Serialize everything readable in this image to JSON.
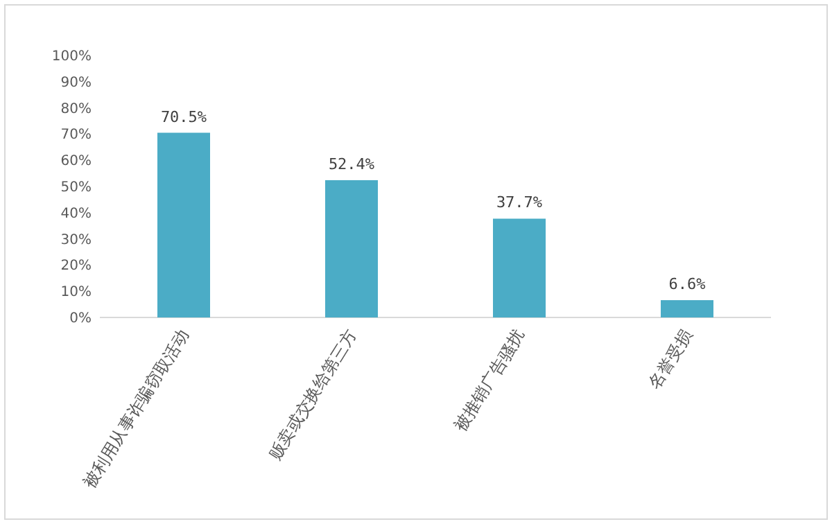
{
  "chart_data": {
    "type": "bar",
    "categories": [
      "被利用从事诈骗窃取活动",
      "贩卖或交换给第三方",
      "被推销广告骚扰",
      "名誉受损"
    ],
    "values": [
      70.5,
      52.4,
      37.7,
      6.6
    ],
    "value_labels": [
      "70.5%",
      "52.4%",
      "37.7%",
      "6.6%"
    ],
    "color": "#4bacc6",
    "ylim": [
      0,
      100
    ],
    "yticks": [
      {
        "value": 0,
        "label": "0%"
      },
      {
        "value": 10,
        "label": "10%"
      },
      {
        "value": 20,
        "label": "20%"
      },
      {
        "value": 30,
        "label": "30%"
      },
      {
        "value": 40,
        "label": "40%"
      },
      {
        "value": 50,
        "label": "50%"
      },
      {
        "value": 60,
        "label": "60%"
      },
      {
        "value": 70,
        "label": "70%"
      },
      {
        "value": 80,
        "label": "80%"
      },
      {
        "value": 90,
        "label": "90%"
      },
      {
        "value": 100,
        "label": "100%"
      }
    ]
  }
}
